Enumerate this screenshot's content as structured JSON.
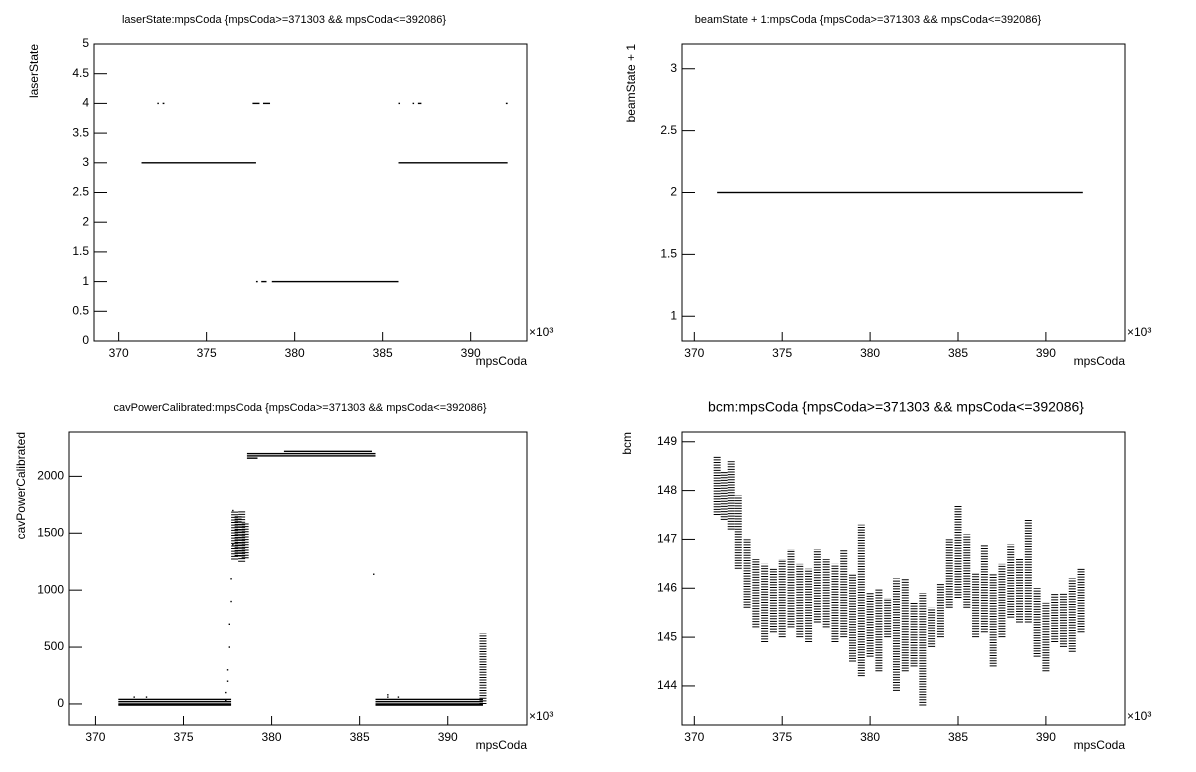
{
  "chart_data": [
    {
      "type": "scatter",
      "title": "laserState:mpsCoda {mpsCoda>=371303 && mpsCoda<=392086}",
      "x_label": "mpsCoda",
      "y_label": "laserState",
      "x_multiplier": "×10³",
      "xlim": [
        368.6,
        393.2
      ],
      "ylim": [
        0,
        5
      ],
      "xticks": [
        370,
        375,
        380,
        385,
        390
      ],
      "yticks": [
        0,
        0.5,
        1,
        1.5,
        2,
        2.5,
        3,
        3.5,
        4,
        4.5,
        5
      ],
      "color": "#000000",
      "segments": {
        "x_start": [
          371.3,
          385.9,
          372.2,
          372.5,
          377.6,
          378.2,
          385.9,
          386.7,
          387.0,
          392.0,
          377.8,
          378.1,
          378.7
        ],
        "x_end": [
          377.8,
          392.1,
          372.2,
          372.6,
          378.0,
          378.6,
          385.9,
          386.7,
          387.2,
          392.1,
          377.9,
          378.4,
          385.9
        ],
        "y": [
          3,
          3,
          4,
          4,
          4,
          4,
          4,
          4,
          4,
          4,
          1,
          1,
          1
        ]
      }
    },
    {
      "type": "scatter",
      "title": "beamState + 1:mpsCoda {mpsCoda>=371303 && mpsCoda<=392086}",
      "x_label": "mpsCoda",
      "y_label": "beamState + 1",
      "x_multiplier": "×10³",
      "xlim": [
        369.3,
        394.5
      ],
      "ylim": [
        0.8,
        3.2
      ],
      "xticks": [
        370,
        375,
        380,
        385,
        390
      ],
      "yticks": [
        1,
        1.5,
        2,
        2.5,
        3
      ],
      "color": "#000000",
      "segments": {
        "x_start": [
          371.3
        ],
        "x_end": [
          392.1
        ],
        "y": [
          2
        ]
      }
    },
    {
      "type": "scatter",
      "title": "cavPowerCalibrated:mpsCoda {mpsCoda>=371303 && mpsCoda<=392086}",
      "x_label": "mpsCoda",
      "y_label": "cavPowerCalibrated",
      "x_multiplier": "×10³",
      "xlim": [
        368.5,
        394.5
      ],
      "ylim": [
        -185,
        2390
      ],
      "xticks": [
        370,
        375,
        380,
        385,
        390
      ],
      "yticks": [
        0,
        500,
        1000,
        1500,
        2000
      ],
      "color": "#000000",
      "segments": {
        "x_start": [
          371.3,
          371.3,
          371.3,
          371.3,
          385.9,
          385.9,
          385.9,
          385.9,
          380.7,
          378.6,
          378.6,
          378.6
        ],
        "x_end": [
          377.7,
          377.7,
          377.7,
          377.7,
          392.0,
          392.0,
          392.0,
          392.0,
          385.7,
          385.9,
          385.9,
          379.2
        ],
        "y": [
          40,
          20,
          0,
          -10,
          40,
          20,
          0,
          -10,
          2220,
          2200,
          2180,
          2160
        ]
      },
      "points": {
        "x": [
          372.2,
          372.9,
          386.6,
          387.2,
          386.6,
          377.4,
          377.4,
          377.5,
          377.5,
          377.6,
          377.6,
          377.7,
          377.7,
          377.8,
          377.8,
          385.8
        ],
        "y": [
          60,
          60,
          60,
          60,
          80,
          30,
          100,
          200,
          300,
          500,
          700,
          900,
          1100,
          1400,
          1700,
          1140
        ]
      },
      "columns": {
        "x": [
          377.9,
          378.1,
          378.3,
          378.5,
          392.0
        ],
        "low": [
          1270,
          1300,
          1250,
          1280,
          0
        ],
        "high": [
          1700,
          1650,
          1700,
          1600,
          620
        ]
      }
    },
    {
      "type": "scatter",
      "title": "bcm:mpsCoda {mpsCoda>=371303 && mpsCoda<=392086}",
      "x_label": "mpsCoda",
      "y_label": "bcm",
      "x_multiplier": "×10³",
      "xlim": [
        369.3,
        394.5
      ],
      "ylim": [
        143.2,
        149.2
      ],
      "xticks": [
        370,
        375,
        380,
        385,
        390
      ],
      "yticks": [
        144,
        145,
        146,
        147,
        148,
        149
      ],
      "color": "#000000",
      "columns": {
        "x": [
          371.3,
          371.7,
          372.1,
          372.5,
          373,
          373.5,
          374,
          374.5,
          375,
          375.5,
          376,
          376.5,
          377,
          377.5,
          378,
          378.5,
          379,
          379.5,
          380,
          380.5,
          381,
          381.5,
          382,
          382.5,
          383,
          383.5,
          384,
          384.5,
          385,
          385.5,
          386,
          386.5,
          387,
          387.5,
          388,
          388.5,
          389,
          389.5,
          390,
          390.5,
          391,
          391.5,
          392
        ],
        "low": [
          147.5,
          147.4,
          147.2,
          146.4,
          145.6,
          145.2,
          144.9,
          145.1,
          145.0,
          145.2,
          145.0,
          144.9,
          145.3,
          145.2,
          144.9,
          145.0,
          144.5,
          144.2,
          144.6,
          144.3,
          145.0,
          143.9,
          144.3,
          144.4,
          143.6,
          144.8,
          145.0,
          145.6,
          145.8,
          145.6,
          145.0,
          145.1,
          144.4,
          145.0,
          145.4,
          145.3,
          145.3,
          144.6,
          144.3,
          144.9,
          144.8,
          144.7,
          145.1
        ],
        "high": [
          148.7,
          148.4,
          148.6,
          147.9,
          147.0,
          146.6,
          146.5,
          146.4,
          146.6,
          146.8,
          146.5,
          146.4,
          146.8,
          146.6,
          146.5,
          146.8,
          146.3,
          147.3,
          145.9,
          146.0,
          145.8,
          146.2,
          146.2,
          145.7,
          145.9,
          145.6,
          146.1,
          147.0,
          147.7,
          147.1,
          146.3,
          146.9,
          146.3,
          146.5,
          146.9,
          146.6,
          147.4,
          146.0,
          145.7,
          145.9,
          145.9,
          146.2,
          146.4
        ]
      }
    }
  ]
}
